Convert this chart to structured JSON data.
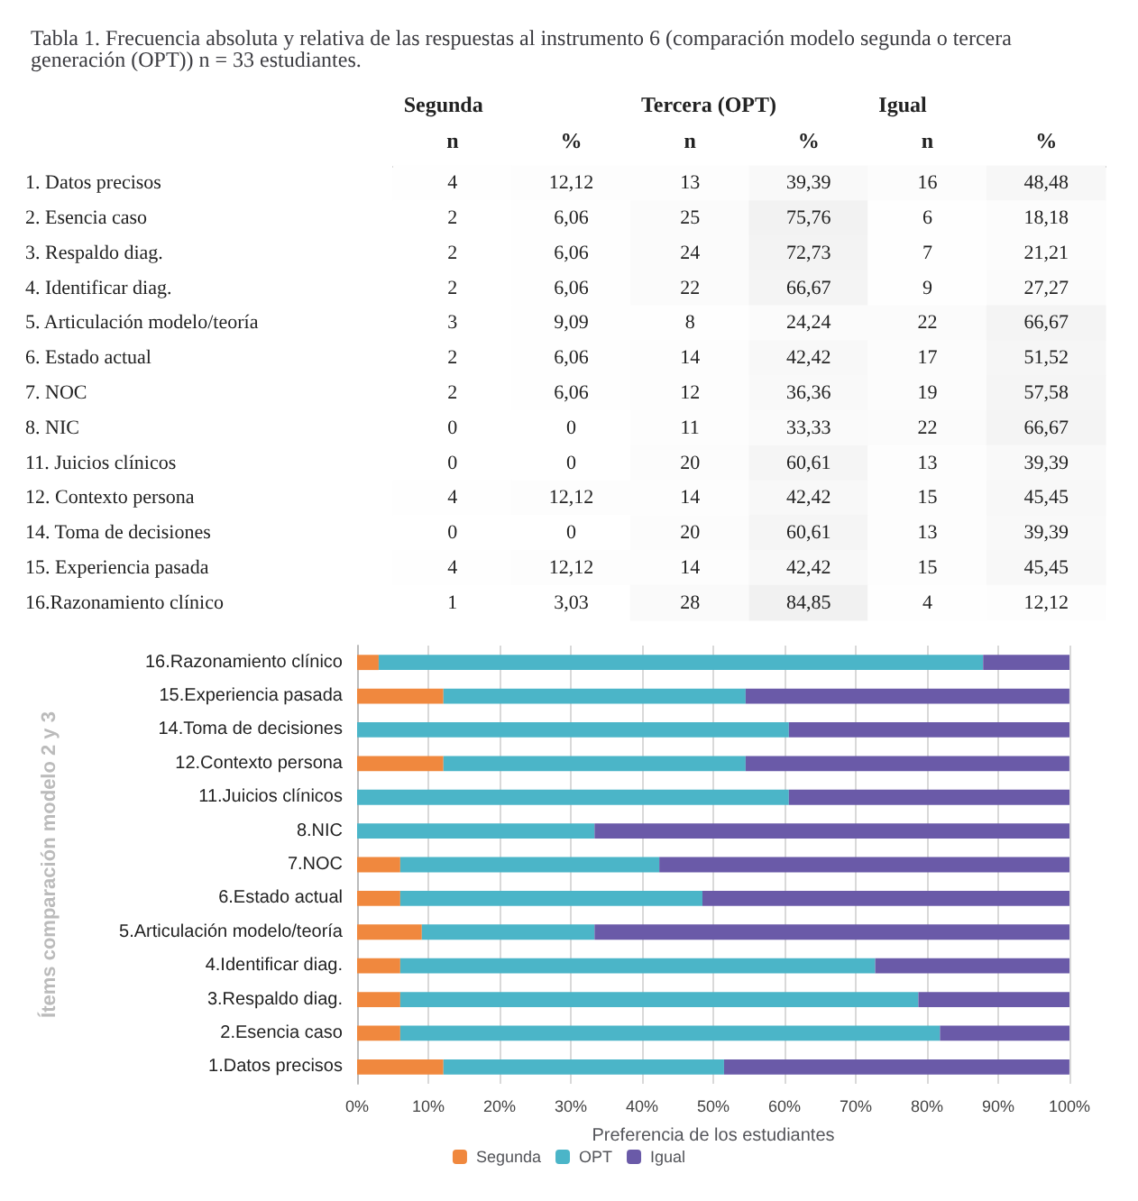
{
  "chart_data": [
    {
      "type": "heatmap",
      "title": "Tabla 1. Frecuencia absoluta y relativa de las respuestas al instrumento 6 (comparación modelo segunda o tercera generación (OPT)) n = 33 estudiantes.",
      "annotations": [
        "Segunda",
        "Tercera (OPT)",
        "Igual"
      ],
      "categories": [
        "n",
        "%",
        "n",
        "%",
        "n",
        "%"
      ],
      "y_categories": [
        "1. Datos precisos",
        "2. Esencia caso",
        "3. Respaldo diag.",
        "4. Identificar diag.",
        "5. Articulación modelo/teoría",
        "6. Estado actual",
        "7. NOC",
        "8. NIC",
        "11. Juicios clínicos",
        "12. Contexto persona",
        "14. Toma de decisiones",
        "15. Experiencia pasada",
        "16.Razonamiento clínico"
      ],
      "cells": [
        [
          4,
          12.12,
          13,
          39.39,
          16,
          48.48
        ],
        [
          2,
          6.06,
          25,
          75.76,
          6,
          18.18
        ],
        [
          2,
          6.06,
          24,
          72.73,
          7,
          21.21
        ],
        [
          2,
          6.06,
          22,
          66.67,
          9,
          27.27
        ],
        [
          3,
          9.09,
          8,
          24.24,
          22,
          66.67
        ],
        [
          2,
          6.06,
          14,
          42.42,
          17,
          51.52
        ],
        [
          2,
          6.06,
          12,
          36.36,
          19,
          57.58
        ],
        [
          0,
          0,
          11,
          33.33,
          22,
          66.67
        ],
        [
          0,
          0,
          20,
          60.61,
          13,
          39.39
        ],
        [
          4,
          12.12,
          14,
          42.42,
          15,
          45.45
        ],
        [
          0,
          0,
          20,
          60.61,
          13,
          39.39
        ],
        [
          4,
          12.12,
          14,
          42.42,
          15,
          45.45
        ],
        [
          1,
          3.03,
          28,
          84.85,
          4,
          12.12
        ]
      ],
      "cell_labels": [
        [
          "4",
          "12,12",
          "13",
          "39,39",
          "16",
          "48,48"
        ],
        [
          "2",
          "6,06",
          "25",
          "75,76",
          "6",
          "18,18"
        ],
        [
          "2",
          "6,06",
          "24",
          "72,73",
          "7",
          "21,21"
        ],
        [
          "2",
          "6,06",
          "22",
          "66,67",
          "9",
          "27,27"
        ],
        [
          "3",
          "9,09",
          "8",
          "24,24",
          "22",
          "66,67"
        ],
        [
          "2",
          "6,06",
          "14",
          "42,42",
          "17",
          "51,52"
        ],
        [
          "2",
          "6,06",
          "12",
          "36,36",
          "19",
          "57,58"
        ],
        [
          "0",
          "0",
          "11",
          "33,33",
          "22",
          "66,67"
        ],
        [
          "0",
          "0",
          "20",
          "60,61",
          "13",
          "39,39"
        ],
        [
          "4",
          "12,12",
          "14",
          "42,42",
          "15",
          "45,45"
        ],
        [
          "0",
          "0",
          "20",
          "60,61",
          "13",
          "39,39"
        ],
        [
          "4",
          "12,12",
          "14",
          "42,42",
          "15",
          "45,45"
        ],
        [
          "1",
          "3,03",
          "28",
          "84,85",
          "4",
          "12,12"
        ]
      ]
    },
    {
      "type": "bar",
      "orientation": "horizontal",
      "stacked": true,
      "xlabel": "Preferencia de los estudiantes",
      "ylabel": "Ítems comparación modelo 2 y 3",
      "legend": "bottom",
      "grid": "x",
      "categories": [
        "16.Razonamiento clínico",
        "15.Experiencia pasada",
        "14.Toma de decisiones",
        "12.Contexto persona",
        "11.Juicios clínicos",
        "8.NIC",
        "7.NOC",
        "6.Estado actual",
        "5.Articulación modelo/teoría",
        "4.Identificar diag.",
        "3.Respaldo diag.",
        "2.Esencia caso",
        "1.Datos precisos"
      ],
      "xlim": [
        0,
        100
      ],
      "xticks": [
        {
          "value": 0,
          "label": "0%"
        },
        {
          "value": 10,
          "label": "10%"
        },
        {
          "value": 20,
          "label": "20%"
        },
        {
          "value": 30,
          "label": "30%"
        },
        {
          "value": 40,
          "label": "40%"
        },
        {
          "value": 50,
          "label": "50%"
        },
        {
          "value": 60,
          "label": "60%"
        },
        {
          "value": 70,
          "label": "70%"
        },
        {
          "value": 80,
          "label": "80%"
        },
        {
          "value": 90,
          "label": "90%"
        },
        {
          "value": 100,
          "label": "100%"
        }
      ],
      "series": [
        {
          "name": "Segunda",
          "color": "#f0883e",
          "values": [
            3.03,
            12.12,
            0,
            12.12,
            0,
            0,
            6.06,
            6.06,
            9.09,
            6.06,
            6.06,
            6.06,
            12.12
          ]
        },
        {
          "name": "OPT",
          "color": "#4bb5c8",
          "values": [
            84.85,
            42.42,
            60.61,
            42.42,
            60.61,
            33.33,
            36.36,
            42.42,
            24.24,
            66.67,
            72.73,
            75.76,
            39.39
          ]
        },
        {
          "name": "Igual",
          "color": "#6a5aa8",
          "values": [
            12.12,
            45.45,
            39.39,
            45.45,
            39.39,
            66.67,
            57.58,
            51.52,
            66.67,
            27.27,
            21.21,
            18.18,
            48.48
          ]
        }
      ]
    }
  ]
}
